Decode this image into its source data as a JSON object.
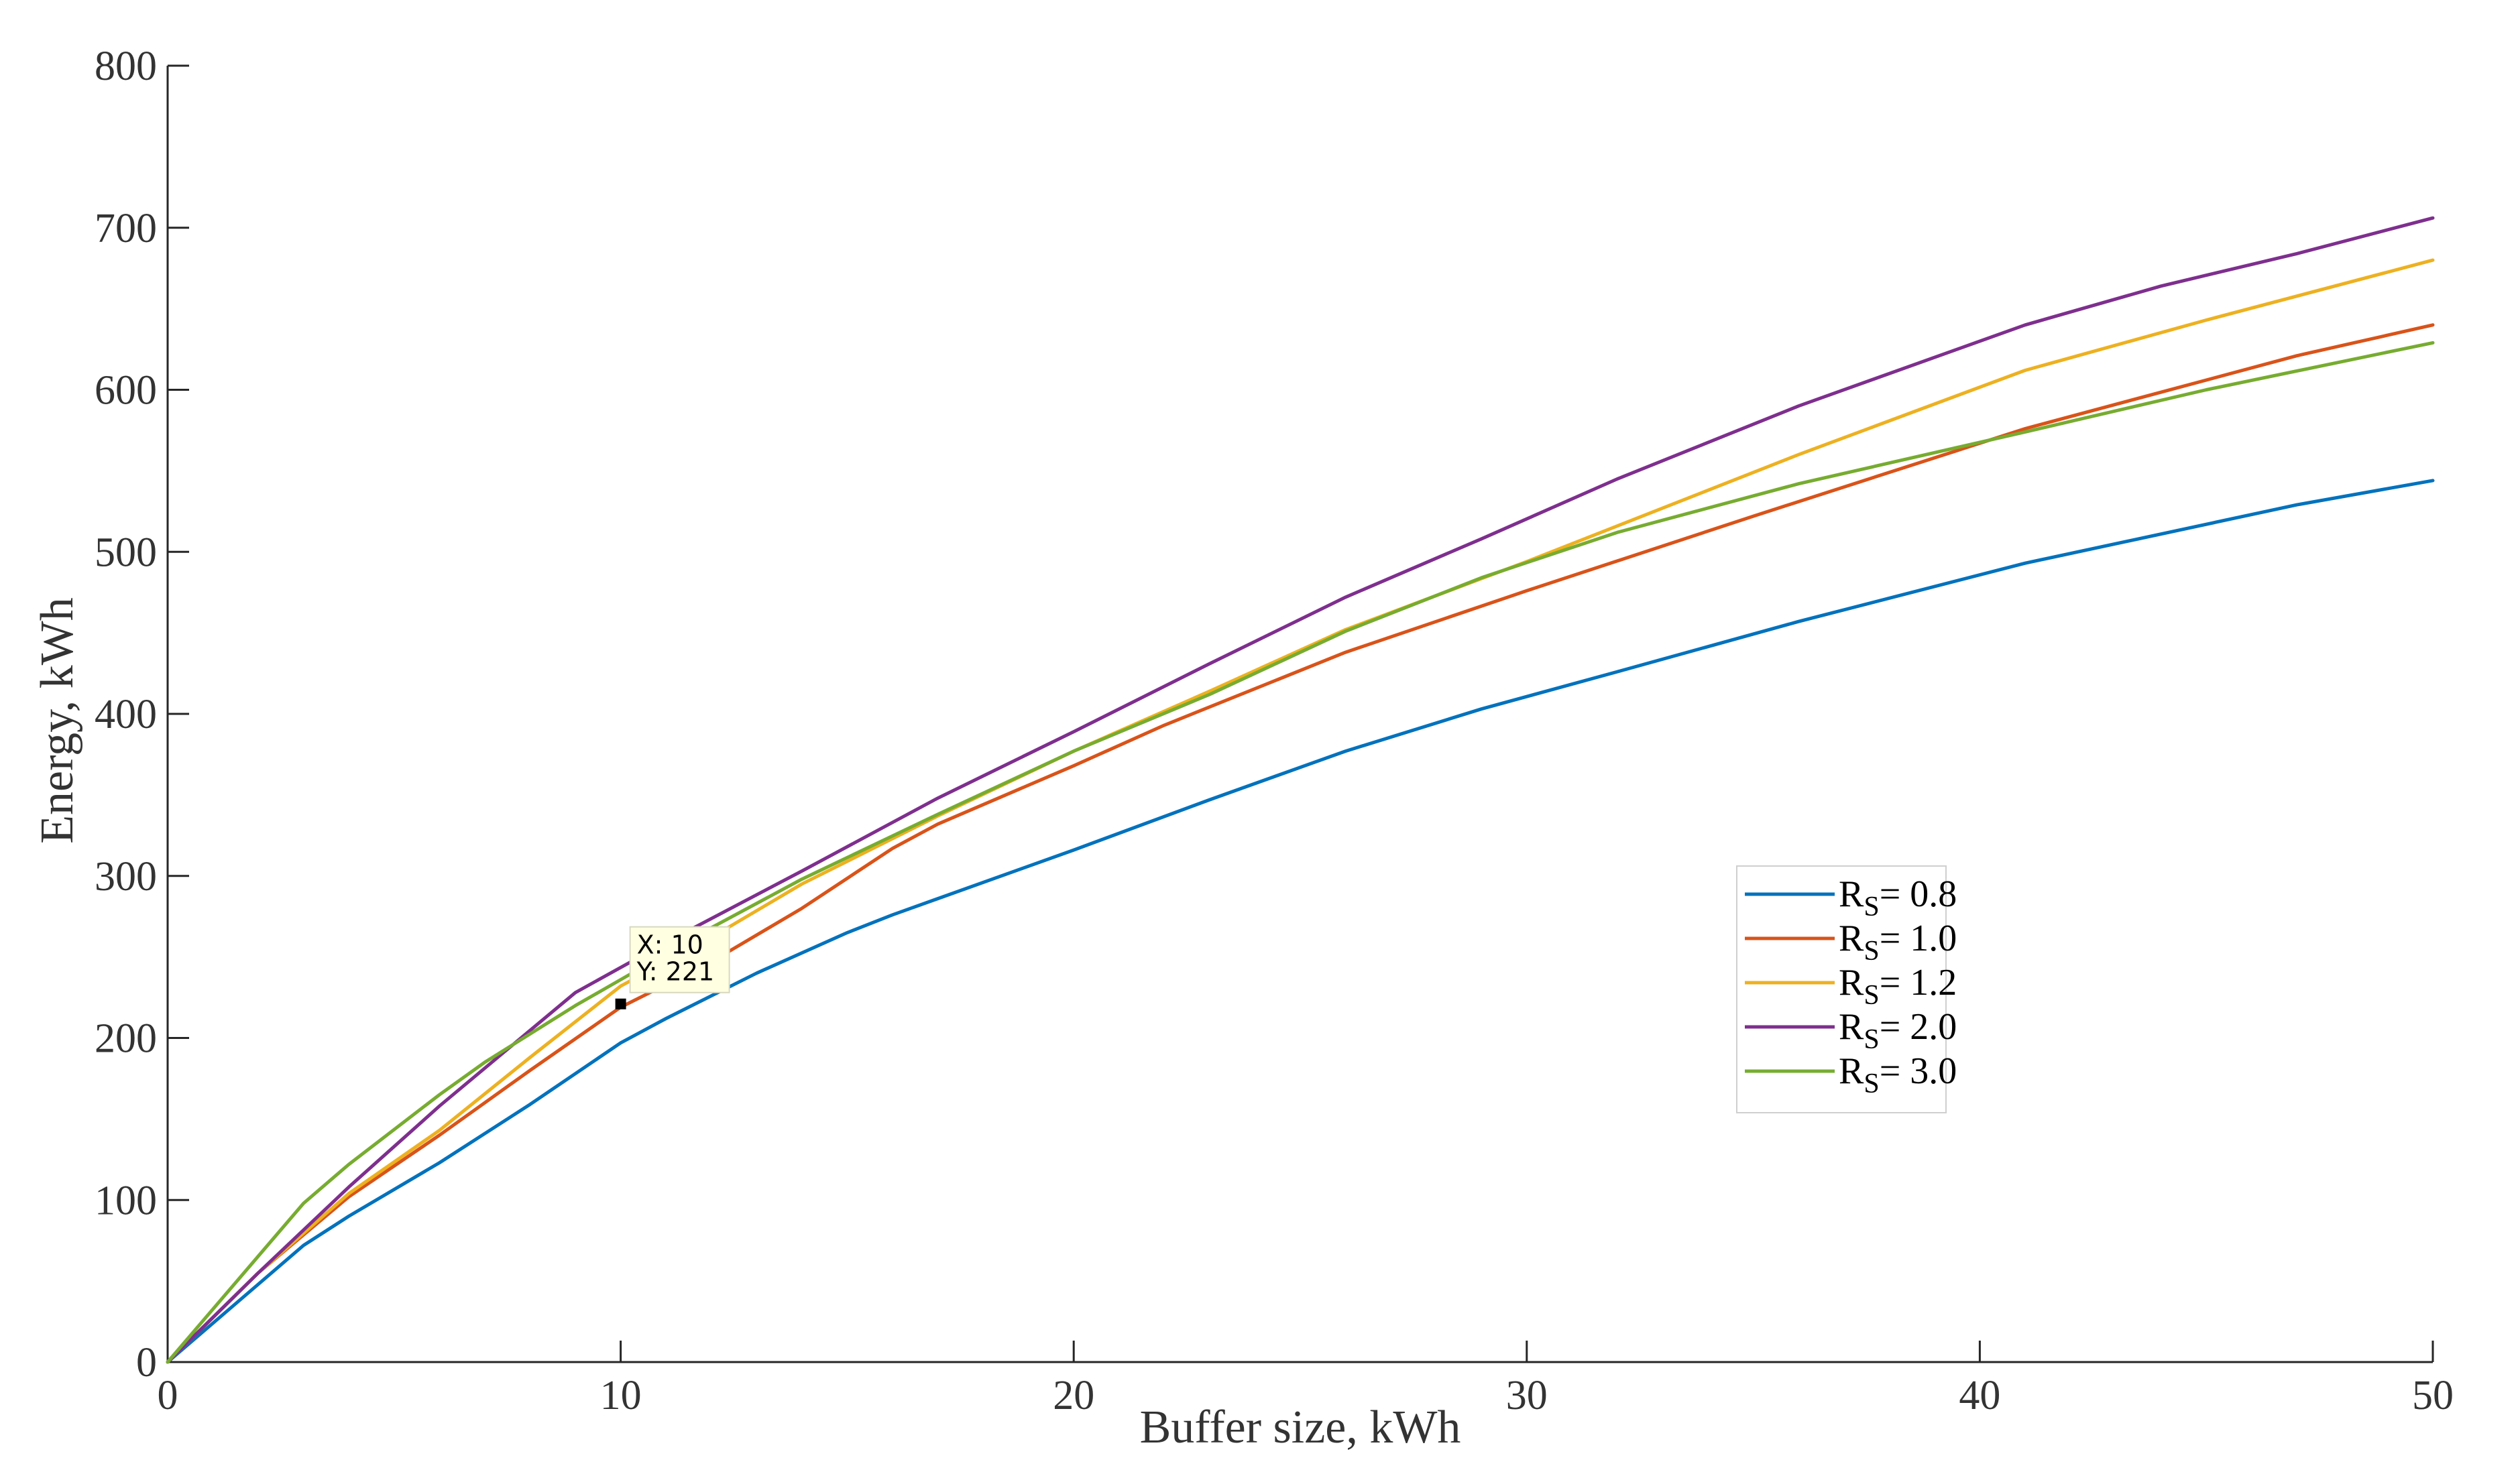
{
  "chart_data": {
    "type": "line",
    "xlabel": "Buffer size, kWh",
    "ylabel": "Energy, kWh",
    "xlim": [
      0,
      50
    ],
    "ylim": [
      0,
      800
    ],
    "xticks": [
      "0",
      "10",
      "20",
      "30",
      "40",
      "50"
    ],
    "yticks": [
      "0",
      "100",
      "200",
      "300",
      "400",
      "500",
      "600",
      "700",
      "800"
    ],
    "grid": false,
    "legend_position": "center-right",
    "series": [
      {
        "name": "R",
        "subscript": "S",
        "suffix": "= 0.8",
        "color": "#0072BD",
        "x": [
          0,
          3,
          4,
          6,
          8,
          10,
          11,
          13,
          15,
          16,
          20,
          23,
          26,
          29,
          32,
          36,
          41,
          47,
          50
        ],
        "y": [
          0,
          72,
          90,
          123,
          159,
          197,
          212,
          240,
          265,
          276,
          316,
          347,
          377,
          403,
          426,
          457,
          493,
          529,
          544
        ]
      },
      {
        "name": "R",
        "subscript": "S",
        "suffix": "= 1.0",
        "color": "#D95319",
        "x": [
          0,
          2,
          4,
          6,
          8,
          10,
          12,
          14,
          16,
          17,
          20,
          22,
          26,
          30,
          35,
          41,
          47,
          50
        ],
        "y": [
          0,
          55,
          102,
          140,
          180,
          219,
          247,
          280,
          317,
          332,
          368,
          393,
          438,
          476,
          522,
          576,
          621,
          640
        ]
      },
      {
        "name": "R",
        "subscript": "S",
        "suffix": "= 1.2",
        "color": "#EDB120",
        "x": [
          0,
          2,
          4,
          6,
          8,
          10,
          12,
          14,
          17,
          20,
          23,
          26,
          30,
          36,
          41,
          45,
          50
        ],
        "y": [
          0,
          55,
          104,
          143,
          188,
          232,
          262,
          295,
          337,
          377,
          414,
          452,
          494,
          560,
          612,
          643,
          680
        ]
      },
      {
        "name": "R",
        "subscript": "S",
        "suffix": "= 2.0",
        "color": "#7E2F8E",
        "x": [
          0,
          2,
          4,
          6,
          9,
          11,
          14,
          17,
          20,
          23,
          26,
          29,
          32,
          36,
          41,
          44,
          47,
          50
        ],
        "y": [
          0,
          55,
          108,
          158,
          228,
          259,
          303,
          348,
          389,
          431,
          472,
          508,
          545,
          590,
          640,
          664,
          684,
          706
        ]
      },
      {
        "name": "R",
        "subscript": "S",
        "suffix": "= 3.0",
        "color": "#77AC30",
        "x": [
          0,
          3,
          4,
          6,
          7,
          9,
          10,
          12,
          14,
          17,
          20,
          23,
          26,
          29,
          32,
          36,
          41,
          45,
          50
        ],
        "y": [
          0,
          98,
          122,
          165,
          185,
          220,
          236,
          268,
          298,
          338,
          377,
          412,
          451,
          484,
          512,
          542,
          574,
          600,
          629
        ]
      }
    ],
    "annotations": [
      {
        "type": "datatip",
        "x": 10,
        "y": 221,
        "lines": [
          "X: 10",
          "Y: 221"
        ]
      }
    ]
  }
}
